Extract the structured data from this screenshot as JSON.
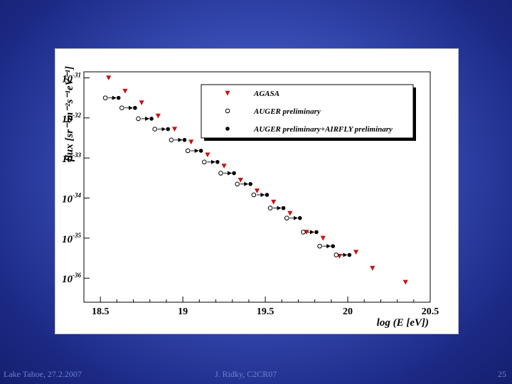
{
  "footer": {
    "left": "Lake Tahoe, 27.2.2007",
    "center": "J. Ridky, C2CR07",
    "right": "25"
  },
  "chart_data": {
    "type": "scatter",
    "title": "",
    "xlabel": "log (E [eV])",
    "ylabel": "flux [sr⁻¹m⁻²s⁻¹eV⁻¹]",
    "xlim": [
      18.4,
      20.5
    ],
    "ylim": [
      -36.6,
      -30.85
    ],
    "yscale": "log10",
    "x_ticks": [
      18.5,
      19,
      19.5,
      20,
      20.5
    ],
    "x_tick_labels": [
      "18.5",
      "19",
      "19.5",
      "20",
      "20.5"
    ],
    "y_ticks": [
      -31,
      -32,
      -33,
      -34,
      -35,
      -36
    ],
    "y_tick_base": "10",
    "y_tick_exponents": [
      "-31",
      "-32",
      "-33",
      "-34",
      "-35",
      "-36"
    ],
    "legend_position": "top-right",
    "arrows": "horizontal arrows connect each AUGER preliminary point to its AUGER preliminary+AIRFLY preliminary point",
    "series": [
      {
        "name": "AGASA",
        "marker": "triangle-down",
        "color": "#c81414",
        "x": [
          18.55,
          18.65,
          18.75,
          18.85,
          18.95,
          19.05,
          19.15,
          19.25,
          19.35,
          19.45,
          19.55,
          19.65,
          19.75,
          19.85,
          19.95,
          20.05,
          20.15,
          20.35
        ],
        "y": [
          -31.0,
          -31.33,
          -31.62,
          -31.95,
          -32.28,
          -32.6,
          -32.92,
          -33.2,
          -33.55,
          -33.82,
          -34.1,
          -34.38,
          -34.85,
          -35.0,
          -35.45,
          -35.35,
          -35.75,
          -36.1
        ]
      },
      {
        "name": "AUGER preliminary",
        "marker": "circle-open",
        "color": "#000000",
        "x": [
          18.53,
          18.63,
          18.73,
          18.83,
          18.93,
          19.03,
          19.13,
          19.23,
          19.33,
          19.43,
          19.53,
          19.63,
          19.73,
          19.83,
          19.93
        ],
        "y": [
          -31.5,
          -31.75,
          -32.02,
          -32.28,
          -32.55,
          -32.82,
          -33.1,
          -33.38,
          -33.65,
          -33.92,
          -34.25,
          -34.5,
          -34.85,
          -35.2,
          -35.42
        ]
      },
      {
        "name": "AUGER preliminary+AIRFLY preliminary",
        "marker": "circle-filled",
        "color": "#000000",
        "x": [
          18.61,
          18.71,
          18.81,
          18.91,
          19.01,
          19.11,
          19.21,
          19.31,
          19.41,
          19.51,
          19.61,
          19.71,
          19.81,
          19.91,
          20.01
        ],
        "y": [
          -31.5,
          -31.75,
          -32.02,
          -32.28,
          -32.55,
          -32.82,
          -33.1,
          -33.38,
          -33.65,
          -33.92,
          -34.25,
          -34.5,
          -34.85,
          -35.2,
          -35.42
        ]
      }
    ]
  }
}
